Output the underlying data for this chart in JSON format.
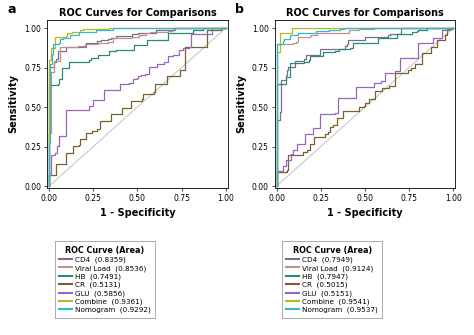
{
  "title": "ROC Curves for Comparisons",
  "xlabel": "1 - Specificity",
  "ylabel": "Sensitivity",
  "panel_a_label": "a",
  "panel_b_label": "b",
  "colors": {
    "CD4": "#7b6d8d",
    "Viral Load": "#c09090",
    "HB": "#2a8a7a",
    "CR": "#7a6030",
    "GLU": "#9966bb",
    "Combine": "#b8b820",
    "Nomogram": "#30b8cc",
    "diagonal": "#c8c8c8"
  },
  "panel_a": {
    "legend_title": "ROC Curve (Area)",
    "legend_labels": [
      [
        "CD4",
        "0.8359"
      ],
      [
        "Viral Load",
        "0.8536"
      ],
      [
        "HB",
        "0.7491"
      ],
      [
        "CR",
        "0.5131"
      ],
      [
        "GLU",
        "0.5856"
      ],
      [
        "Combine",
        "0.9361"
      ],
      [
        "Nomogram",
        "0.9292"
      ]
    ],
    "curves": {
      "CD4": {
        "pts_fpr": [
          0,
          0.02,
          0.05,
          0.1,
          0.2,
          0.35,
          0.5,
          0.7,
          0.85,
          1.0
        ],
        "pts_tpr": [
          0,
          0.72,
          0.8,
          0.84,
          0.88,
          0.91,
          0.94,
          0.97,
          0.99,
          1.0
        ]
      },
      "Viral Load": {
        "pts_fpr": [
          0,
          0.02,
          0.05,
          0.1,
          0.2,
          0.35,
          0.5,
          0.7,
          0.9,
          1.0
        ],
        "pts_tpr": [
          0,
          0.7,
          0.78,
          0.83,
          0.87,
          0.9,
          0.93,
          0.96,
          0.99,
          1.0
        ]
      },
      "HB": {
        "pts_fpr": [
          0,
          0.03,
          0.07,
          0.12,
          0.2,
          0.35,
          0.5,
          0.65,
          0.8,
          1.0
        ],
        "pts_tpr": [
          0,
          0.6,
          0.68,
          0.74,
          0.78,
          0.82,
          0.86,
          0.9,
          0.95,
          1.0
        ]
      },
      "CR": {
        "pts_fpr": [
          0,
          0.05,
          0.12,
          0.2,
          0.35,
          0.5,
          0.65,
          0.8,
          0.9,
          1.0
        ],
        "pts_tpr": [
          0,
          0.08,
          0.18,
          0.28,
          0.4,
          0.52,
          0.62,
          0.75,
          0.88,
          1.0
        ]
      },
      "GLU": {
        "pts_fpr": [
          0,
          0.03,
          0.08,
          0.15,
          0.25,
          0.4,
          0.55,
          0.7,
          0.85,
          1.0
        ],
        "pts_tpr": [
          0,
          0.18,
          0.28,
          0.38,
          0.5,
          0.6,
          0.7,
          0.8,
          0.9,
          1.0
        ]
      },
      "Combine": {
        "pts_fpr": [
          0,
          0.01,
          0.03,
          0.06,
          0.12,
          0.25,
          0.5,
          0.75,
          0.9,
          1.0
        ],
        "pts_tpr": [
          0,
          0.8,
          0.88,
          0.92,
          0.95,
          0.97,
          0.98,
          0.99,
          1.0,
          1.0
        ]
      },
      "Nomogram": {
        "pts_fpr": [
          0,
          0.01,
          0.03,
          0.07,
          0.15,
          0.3,
          0.5,
          0.7,
          0.9,
          1.0
        ],
        "pts_tpr": [
          0,
          0.78,
          0.86,
          0.91,
          0.94,
          0.96,
          0.98,
          0.99,
          1.0,
          1.0
        ]
      }
    }
  },
  "panel_b": {
    "legend_title": "ROC Curve (Area)",
    "legend_labels": [
      [
        "CD4",
        "0.7949"
      ],
      [
        "Viral Load",
        "0.9124"
      ],
      [
        "HB",
        "0.7947"
      ],
      [
        "CR",
        "0.5015"
      ],
      [
        "GLU",
        "0.5151"
      ],
      [
        "Combine",
        "0.9541"
      ],
      [
        "Nomogram",
        "0.9537"
      ]
    ],
    "curves": {
      "CD4": {
        "pts_fpr": [
          0,
          0.03,
          0.07,
          0.15,
          0.25,
          0.4,
          0.55,
          0.7,
          0.85,
          1.0
        ],
        "pts_tpr": [
          0,
          0.62,
          0.72,
          0.78,
          0.83,
          0.87,
          0.91,
          0.95,
          0.98,
          1.0
        ]
      },
      "Viral Load": {
        "pts_fpr": [
          0,
          0.02,
          0.05,
          0.1,
          0.2,
          0.35,
          0.55,
          0.75,
          0.9,
          1.0
        ],
        "pts_tpr": [
          0,
          0.78,
          0.86,
          0.9,
          0.93,
          0.95,
          0.97,
          0.99,
          1.0,
          1.0
        ]
      },
      "HB": {
        "pts_fpr": [
          0,
          0.03,
          0.07,
          0.13,
          0.22,
          0.35,
          0.5,
          0.65,
          0.82,
          1.0
        ],
        "pts_tpr": [
          0,
          0.58,
          0.68,
          0.75,
          0.8,
          0.84,
          0.88,
          0.92,
          0.97,
          1.0
        ]
      },
      "CR": {
        "pts_fpr": [
          0,
          0.05,
          0.12,
          0.22,
          0.35,
          0.5,
          0.65,
          0.8,
          0.92,
          1.0
        ],
        "pts_tpr": [
          0,
          0.07,
          0.16,
          0.26,
          0.38,
          0.5,
          0.62,
          0.75,
          0.88,
          1.0
        ]
      },
      "GLU": {
        "pts_fpr": [
          0,
          0.04,
          0.1,
          0.18,
          0.3,
          0.45,
          0.6,
          0.75,
          0.88,
          1.0
        ],
        "pts_tpr": [
          0,
          0.1,
          0.2,
          0.3,
          0.42,
          0.55,
          0.65,
          0.77,
          0.88,
          1.0
        ]
      },
      "Combine": {
        "pts_fpr": [
          0,
          0.01,
          0.03,
          0.06,
          0.12,
          0.25,
          0.5,
          0.75,
          0.9,
          1.0
        ],
        "pts_tpr": [
          0,
          0.82,
          0.9,
          0.94,
          0.96,
          0.98,
          0.99,
          1.0,
          1.0,
          1.0
        ]
      },
      "Nomogram": {
        "pts_fpr": [
          0,
          0.01,
          0.03,
          0.07,
          0.15,
          0.3,
          0.5,
          0.7,
          0.9,
          1.0
        ],
        "pts_tpr": [
          0,
          0.8,
          0.89,
          0.93,
          0.95,
          0.97,
          0.99,
          1.0,
          1.0,
          1.0
        ]
      }
    }
  }
}
